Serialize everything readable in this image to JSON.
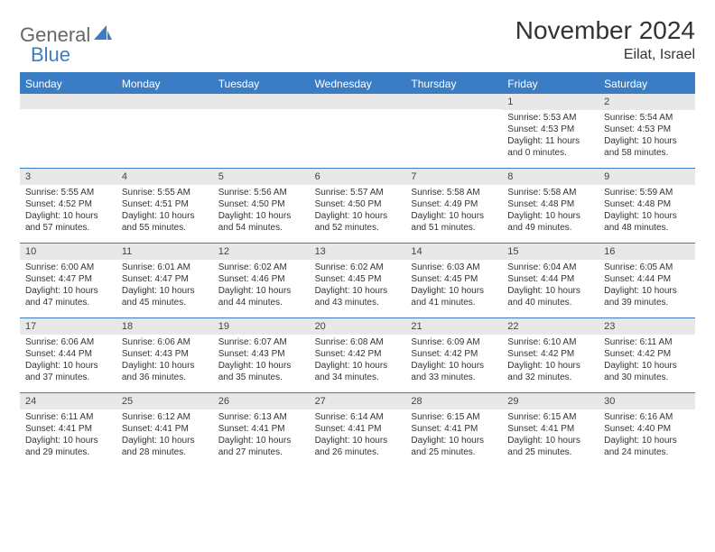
{
  "logo": {
    "text1": "General",
    "text2": "Blue"
  },
  "title": "November 2024",
  "location": "Eilat, Israel",
  "colors": {
    "header_bg": "#3b7dc4",
    "header_text": "#ffffff",
    "daynum_bg": "#e8e8e8",
    "border": "#3b7dc4",
    "text": "#333333"
  },
  "weekdays": [
    "Sunday",
    "Monday",
    "Tuesday",
    "Wednesday",
    "Thursday",
    "Friday",
    "Saturday"
  ],
  "weeks": [
    [
      {
        "n": "",
        "sunrise": "",
        "sunset": "",
        "daylight": ""
      },
      {
        "n": "",
        "sunrise": "",
        "sunset": "",
        "daylight": ""
      },
      {
        "n": "",
        "sunrise": "",
        "sunset": "",
        "daylight": ""
      },
      {
        "n": "",
        "sunrise": "",
        "sunset": "",
        "daylight": ""
      },
      {
        "n": "",
        "sunrise": "",
        "sunset": "",
        "daylight": ""
      },
      {
        "n": "1",
        "sunrise": "Sunrise: 5:53 AM",
        "sunset": "Sunset: 4:53 PM",
        "daylight": "Daylight: 11 hours and 0 minutes."
      },
      {
        "n": "2",
        "sunrise": "Sunrise: 5:54 AM",
        "sunset": "Sunset: 4:53 PM",
        "daylight": "Daylight: 10 hours and 58 minutes."
      }
    ],
    [
      {
        "n": "3",
        "sunrise": "Sunrise: 5:55 AM",
        "sunset": "Sunset: 4:52 PM",
        "daylight": "Daylight: 10 hours and 57 minutes."
      },
      {
        "n": "4",
        "sunrise": "Sunrise: 5:55 AM",
        "sunset": "Sunset: 4:51 PM",
        "daylight": "Daylight: 10 hours and 55 minutes."
      },
      {
        "n": "5",
        "sunrise": "Sunrise: 5:56 AM",
        "sunset": "Sunset: 4:50 PM",
        "daylight": "Daylight: 10 hours and 54 minutes."
      },
      {
        "n": "6",
        "sunrise": "Sunrise: 5:57 AM",
        "sunset": "Sunset: 4:50 PM",
        "daylight": "Daylight: 10 hours and 52 minutes."
      },
      {
        "n": "7",
        "sunrise": "Sunrise: 5:58 AM",
        "sunset": "Sunset: 4:49 PM",
        "daylight": "Daylight: 10 hours and 51 minutes."
      },
      {
        "n": "8",
        "sunrise": "Sunrise: 5:58 AM",
        "sunset": "Sunset: 4:48 PM",
        "daylight": "Daylight: 10 hours and 49 minutes."
      },
      {
        "n": "9",
        "sunrise": "Sunrise: 5:59 AM",
        "sunset": "Sunset: 4:48 PM",
        "daylight": "Daylight: 10 hours and 48 minutes."
      }
    ],
    [
      {
        "n": "10",
        "sunrise": "Sunrise: 6:00 AM",
        "sunset": "Sunset: 4:47 PM",
        "daylight": "Daylight: 10 hours and 47 minutes."
      },
      {
        "n": "11",
        "sunrise": "Sunrise: 6:01 AM",
        "sunset": "Sunset: 4:47 PM",
        "daylight": "Daylight: 10 hours and 45 minutes."
      },
      {
        "n": "12",
        "sunrise": "Sunrise: 6:02 AM",
        "sunset": "Sunset: 4:46 PM",
        "daylight": "Daylight: 10 hours and 44 minutes."
      },
      {
        "n": "13",
        "sunrise": "Sunrise: 6:02 AM",
        "sunset": "Sunset: 4:45 PM",
        "daylight": "Daylight: 10 hours and 43 minutes."
      },
      {
        "n": "14",
        "sunrise": "Sunrise: 6:03 AM",
        "sunset": "Sunset: 4:45 PM",
        "daylight": "Daylight: 10 hours and 41 minutes."
      },
      {
        "n": "15",
        "sunrise": "Sunrise: 6:04 AM",
        "sunset": "Sunset: 4:44 PM",
        "daylight": "Daylight: 10 hours and 40 minutes."
      },
      {
        "n": "16",
        "sunrise": "Sunrise: 6:05 AM",
        "sunset": "Sunset: 4:44 PM",
        "daylight": "Daylight: 10 hours and 39 minutes."
      }
    ],
    [
      {
        "n": "17",
        "sunrise": "Sunrise: 6:06 AM",
        "sunset": "Sunset: 4:44 PM",
        "daylight": "Daylight: 10 hours and 37 minutes."
      },
      {
        "n": "18",
        "sunrise": "Sunrise: 6:06 AM",
        "sunset": "Sunset: 4:43 PM",
        "daylight": "Daylight: 10 hours and 36 minutes."
      },
      {
        "n": "19",
        "sunrise": "Sunrise: 6:07 AM",
        "sunset": "Sunset: 4:43 PM",
        "daylight": "Daylight: 10 hours and 35 minutes."
      },
      {
        "n": "20",
        "sunrise": "Sunrise: 6:08 AM",
        "sunset": "Sunset: 4:42 PM",
        "daylight": "Daylight: 10 hours and 34 minutes."
      },
      {
        "n": "21",
        "sunrise": "Sunrise: 6:09 AM",
        "sunset": "Sunset: 4:42 PM",
        "daylight": "Daylight: 10 hours and 33 minutes."
      },
      {
        "n": "22",
        "sunrise": "Sunrise: 6:10 AM",
        "sunset": "Sunset: 4:42 PM",
        "daylight": "Daylight: 10 hours and 32 minutes."
      },
      {
        "n": "23",
        "sunrise": "Sunrise: 6:11 AM",
        "sunset": "Sunset: 4:42 PM",
        "daylight": "Daylight: 10 hours and 30 minutes."
      }
    ],
    [
      {
        "n": "24",
        "sunrise": "Sunrise: 6:11 AM",
        "sunset": "Sunset: 4:41 PM",
        "daylight": "Daylight: 10 hours and 29 minutes."
      },
      {
        "n": "25",
        "sunrise": "Sunrise: 6:12 AM",
        "sunset": "Sunset: 4:41 PM",
        "daylight": "Daylight: 10 hours and 28 minutes."
      },
      {
        "n": "26",
        "sunrise": "Sunrise: 6:13 AM",
        "sunset": "Sunset: 4:41 PM",
        "daylight": "Daylight: 10 hours and 27 minutes."
      },
      {
        "n": "27",
        "sunrise": "Sunrise: 6:14 AM",
        "sunset": "Sunset: 4:41 PM",
        "daylight": "Daylight: 10 hours and 26 minutes."
      },
      {
        "n": "28",
        "sunrise": "Sunrise: 6:15 AM",
        "sunset": "Sunset: 4:41 PM",
        "daylight": "Daylight: 10 hours and 25 minutes."
      },
      {
        "n": "29",
        "sunrise": "Sunrise: 6:15 AM",
        "sunset": "Sunset: 4:41 PM",
        "daylight": "Daylight: 10 hours and 25 minutes."
      },
      {
        "n": "30",
        "sunrise": "Sunrise: 6:16 AM",
        "sunset": "Sunset: 4:40 PM",
        "daylight": "Daylight: 10 hours and 24 minutes."
      }
    ]
  ]
}
